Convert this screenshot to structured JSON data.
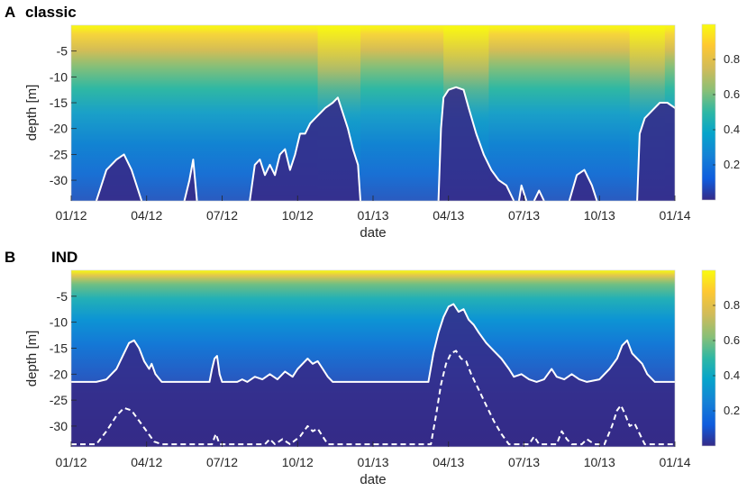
{
  "chart_data": [
    {
      "type": "heatmap",
      "panel_letter": "A",
      "title": "classic",
      "xlabel": "date",
      "ylabel": "depth [m]",
      "x_tick_labels": [
        "01/12",
        "04/12",
        "07/12",
        "10/12",
        "01/13",
        "04/13",
        "07/13",
        "10/13",
        "01/14"
      ],
      "x_tick_months": [
        0,
        3,
        6,
        9,
        12,
        15,
        18,
        21,
        24
      ],
      "xlim_months": [
        0,
        24
      ],
      "y_ticks": [
        -5,
        -10,
        -15,
        -20,
        -25,
        -30
      ],
      "y_tick_labels": [
        "-5",
        "-10",
        "-15",
        "-20",
        "-25",
        "-30"
      ],
      "ylim": [
        -34,
        0
      ],
      "colorbar": {
        "ticks": [
          0.2,
          0.4,
          0.6,
          0.8
        ],
        "tick_labels": [
          "0.2",
          "0.4",
          "0.6",
          "0.8"
        ],
        "range": [
          0,
          1
        ],
        "colormap": "parula"
      },
      "bright_periods_months": [
        [
          9.8,
          11.5
        ],
        [
          14.8,
          16.6
        ],
        [
          22.2,
          23.6
        ]
      ],
      "boundary_line": {
        "color": "#ffffff",
        "style": "solid",
        "segments": [
          [
            [
              1.0,
              -34
            ],
            [
              1.4,
              -28
            ],
            [
              1.8,
              -26
            ],
            [
              2.1,
              -25
            ],
            [
              2.4,
              -28
            ],
            [
              2.8,
              -34
            ]
          ],
          [
            [
              4.5,
              -34
            ],
            [
              4.7,
              -30
            ],
            [
              4.85,
              -26
            ],
            [
              5.0,
              -34
            ]
          ],
          [
            [
              7.1,
              -34
            ],
            [
              7.3,
              -27
            ],
            [
              7.5,
              -26
            ],
            [
              7.7,
              -29
            ],
            [
              7.9,
              -27
            ],
            [
              8.1,
              -29
            ],
            [
              8.3,
              -25
            ],
            [
              8.5,
              -24
            ],
            [
              8.7,
              -28
            ],
            [
              8.9,
              -25
            ],
            [
              9.1,
              -21
            ],
            [
              9.3,
              -21
            ],
            [
              9.5,
              -19
            ],
            [
              9.7,
              -18
            ],
            [
              9.9,
              -17
            ],
            [
              10.1,
              -16
            ],
            [
              10.4,
              -15
            ],
            [
              10.6,
              -14
            ],
            [
              10.8,
              -17
            ],
            [
              11.0,
              -20
            ],
            [
              11.2,
              -24
            ],
            [
              11.4,
              -27
            ],
            [
              11.5,
              -34
            ]
          ],
          [
            [
              14.6,
              -34
            ],
            [
              14.7,
              -20
            ],
            [
              14.8,
              -14
            ],
            [
              15.0,
              -12.5
            ],
            [
              15.3,
              -12
            ],
            [
              15.6,
              -12.5
            ],
            [
              15.8,
              -16
            ],
            [
              16.1,
              -21
            ],
            [
              16.4,
              -25
            ],
            [
              16.7,
              -28
            ],
            [
              17.0,
              -30
            ],
            [
              17.3,
              -31
            ],
            [
              17.6,
              -34
            ]
          ],
          [
            [
              17.8,
              -34
            ],
            [
              17.9,
              -31
            ],
            [
              18.1,
              -34
            ]
          ],
          [
            [
              18.4,
              -34
            ],
            [
              18.6,
              -32
            ],
            [
              18.8,
              -34
            ]
          ],
          [
            [
              19.8,
              -34
            ],
            [
              20.1,
              -29
            ],
            [
              20.4,
              -28
            ],
            [
              20.7,
              -31
            ],
            [
              20.9,
              -34
            ]
          ],
          [
            [
              22.5,
              -34
            ],
            [
              22.6,
              -21
            ],
            [
              22.8,
              -18
            ],
            [
              23.1,
              -16.5
            ],
            [
              23.4,
              -15
            ],
            [
              23.7,
              -15
            ],
            [
              24.0,
              -16
            ],
            [
              24.3,
              -18
            ],
            [
              24.6,
              -22
            ],
            [
              24.9,
              -25
            ],
            [
              25.2,
              -29
            ],
            [
              25.5,
              -31
            ],
            [
              25.7,
              -34
            ]
          ]
        ]
      }
    },
    {
      "type": "heatmap",
      "panel_letter": "B",
      "title": "IND",
      "xlabel": "date",
      "ylabel": "depth [m]",
      "x_tick_labels": [
        "01/12",
        "04/12",
        "07/12",
        "10/12",
        "01/13",
        "04/13",
        "07/13",
        "10/13",
        "01/14"
      ],
      "x_tick_months": [
        0,
        3,
        6,
        9,
        12,
        15,
        18,
        21,
        24
      ],
      "xlim_months": [
        0,
        24
      ],
      "y_ticks": [
        -5,
        -10,
        -15,
        -20,
        -25,
        -30
      ],
      "y_tick_labels": [
        "-5",
        "-10",
        "-15",
        "-20",
        "-25",
        "-30"
      ],
      "ylim": [
        -34,
        0
      ],
      "colorbar": {
        "ticks": [
          0.2,
          0.4,
          0.6,
          0.8
        ],
        "tick_labels": [
          "0.2",
          "0.4",
          "0.6",
          "0.8"
        ],
        "range": [
          0,
          1
        ],
        "colormap": "parula"
      },
      "boundary_line": {
        "color": "#ffffff",
        "style": "solid",
        "points": [
          [
            0,
            -21.5
          ],
          [
            1.0,
            -21.5
          ],
          [
            1.4,
            -21
          ],
          [
            1.8,
            -19
          ],
          [
            2.1,
            -16
          ],
          [
            2.3,
            -14
          ],
          [
            2.5,
            -13.5
          ],
          [
            2.7,
            -15
          ],
          [
            2.9,
            -17.5
          ],
          [
            3.1,
            -19
          ],
          [
            3.2,
            -18
          ],
          [
            3.35,
            -20
          ],
          [
            3.6,
            -21.5
          ],
          [
            5.5,
            -21.5
          ],
          [
            5.6,
            -19
          ],
          [
            5.7,
            -17
          ],
          [
            5.8,
            -16.5
          ],
          [
            5.9,
            -20
          ],
          [
            6.0,
            -21.5
          ],
          [
            6.6,
            -21.5
          ],
          [
            6.8,
            -21
          ],
          [
            7.0,
            -21.5
          ],
          [
            7.3,
            -20.5
          ],
          [
            7.6,
            -21
          ],
          [
            7.9,
            -20
          ],
          [
            8.2,
            -21
          ],
          [
            8.5,
            -19.5
          ],
          [
            8.8,
            -20.5
          ],
          [
            9.0,
            -19
          ],
          [
            9.2,
            -18
          ],
          [
            9.4,
            -17
          ],
          [
            9.6,
            -18
          ],
          [
            9.8,
            -17.5
          ],
          [
            10.0,
            -19
          ],
          [
            10.2,
            -20.5
          ],
          [
            10.4,
            -21.5
          ],
          [
            14.2,
            -21.5
          ],
          [
            14.4,
            -16
          ],
          [
            14.6,
            -12
          ],
          [
            14.8,
            -9
          ],
          [
            15.0,
            -7
          ],
          [
            15.2,
            -6.5
          ],
          [
            15.4,
            -8
          ],
          [
            15.6,
            -7.5
          ],
          [
            15.8,
            -9.5
          ],
          [
            16.0,
            -10.5
          ],
          [
            16.2,
            -12
          ],
          [
            16.5,
            -14
          ],
          [
            16.8,
            -15.5
          ],
          [
            17.1,
            -17
          ],
          [
            17.4,
            -19
          ],
          [
            17.6,
            -20.5
          ],
          [
            17.9,
            -20
          ],
          [
            18.2,
            -21
          ],
          [
            18.5,
            -21.5
          ],
          [
            18.8,
            -21
          ],
          [
            19.1,
            -19
          ],
          [
            19.3,
            -20.5
          ],
          [
            19.6,
            -21
          ],
          [
            19.9,
            -20
          ],
          [
            20.2,
            -21
          ],
          [
            20.5,
            -21.5
          ],
          [
            21.0,
            -21
          ],
          [
            21.4,
            -19
          ],
          [
            21.7,
            -17
          ],
          [
            21.9,
            -14.5
          ],
          [
            22.1,
            -13.5
          ],
          [
            22.3,
            -16
          ],
          [
            22.5,
            -17
          ],
          [
            22.7,
            -18
          ],
          [
            22.9,
            -20
          ],
          [
            23.2,
            -21.5
          ],
          [
            24,
            -21.5
          ]
        ]
      },
      "secondary_line": {
        "color": "#ffffff",
        "style": "dashed",
        "points": [
          [
            0,
            -33.5
          ],
          [
            1.0,
            -33.5
          ],
          [
            1.4,
            -31
          ],
          [
            1.8,
            -28
          ],
          [
            2.1,
            -26.5
          ],
          [
            2.4,
            -27
          ],
          [
            2.7,
            -29
          ],
          [
            3.0,
            -31
          ],
          [
            3.3,
            -33
          ],
          [
            3.6,
            -33.5
          ],
          [
            5.6,
            -33.5
          ],
          [
            5.75,
            -31.5
          ],
          [
            5.9,
            -33.5
          ],
          [
            7.7,
            -33.5
          ],
          [
            7.9,
            -32.5
          ],
          [
            8.1,
            -33.5
          ],
          [
            8.4,
            -32.5
          ],
          [
            8.7,
            -33.5
          ],
          [
            9.1,
            -32
          ],
          [
            9.4,
            -30
          ],
          [
            9.6,
            -31
          ],
          [
            9.8,
            -30.5
          ],
          [
            10.0,
            -32
          ],
          [
            10.2,
            -33.5
          ],
          [
            14.3,
            -33.5
          ],
          [
            14.5,
            -28
          ],
          [
            14.7,
            -22
          ],
          [
            14.9,
            -18
          ],
          [
            15.1,
            -16
          ],
          [
            15.3,
            -15.5
          ],
          [
            15.5,
            -17
          ],
          [
            15.7,
            -17.5
          ],
          [
            15.9,
            -20
          ],
          [
            16.2,
            -23
          ],
          [
            16.5,
            -26
          ],
          [
            16.8,
            -29
          ],
          [
            17.1,
            -31.5
          ],
          [
            17.4,
            -33.5
          ],
          [
            18.2,
            -33.5
          ],
          [
            18.4,
            -32
          ],
          [
            18.6,
            -33.5
          ],
          [
            19.3,
            -33.5
          ],
          [
            19.5,
            -31
          ],
          [
            19.7,
            -32.5
          ],
          [
            19.9,
            -33.5
          ],
          [
            20.3,
            -33.5
          ],
          [
            20.5,
            -32.5
          ],
          [
            20.8,
            -33.5
          ],
          [
            21.2,
            -33.5
          ],
          [
            21.5,
            -30
          ],
          [
            21.7,
            -27
          ],
          [
            21.85,
            -26
          ],
          [
            22.0,
            -27.5
          ],
          [
            22.2,
            -30
          ],
          [
            22.4,
            -29.5
          ],
          [
            22.6,
            -31.5
          ],
          [
            22.8,
            -33.5
          ],
          [
            24,
            -33.5
          ]
        ]
      }
    }
  ]
}
